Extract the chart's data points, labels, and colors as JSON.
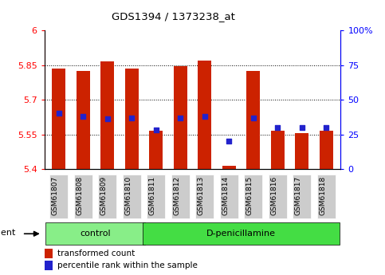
{
  "title": "GDS1394 / 1373238_at",
  "samples": [
    "GSM61807",
    "GSM61808",
    "GSM61809",
    "GSM61810",
    "GSM61811",
    "GSM61812",
    "GSM61813",
    "GSM61814",
    "GSM61815",
    "GSM61816",
    "GSM61817",
    "GSM61818"
  ],
  "transformed_counts": [
    5.835,
    5.825,
    5.865,
    5.835,
    5.565,
    5.845,
    5.868,
    5.415,
    5.825,
    5.565,
    5.555,
    5.565
  ],
  "percentile_ranks": [
    40,
    38,
    36,
    37,
    28,
    37,
    38,
    20,
    37,
    30,
    30,
    30
  ],
  "ylim_left": [
    5.4,
    6.0
  ],
  "ylim_right": [
    0,
    100
  ],
  "yticks_left": [
    5.4,
    5.55,
    5.7,
    5.85,
    6.0
  ],
  "yticks_right": [
    0,
    25,
    50,
    75,
    100
  ],
  "ytick_labels_right": [
    "0",
    "25",
    "50",
    "75",
    "100%"
  ],
  "ytick_labels_left": [
    "5.4",
    "5.55",
    "5.7",
    "5.85",
    "6"
  ],
  "bar_color": "#cc2200",
  "dot_color": "#2222cc",
  "bar_bottom": 5.4,
  "control_indices": [
    0,
    1,
    2,
    3
  ],
  "treatment_indices": [
    4,
    5,
    6,
    7,
    8,
    9,
    10,
    11
  ],
  "control_label": "control",
  "treatment_label": "D-penicillamine",
  "agent_label": "agent",
  "legend_bar_label": "transformed count",
  "legend_dot_label": "percentile rank within the sample",
  "control_color": "#88ee88",
  "treatment_color": "#44dd44",
  "tick_bg_color": "#cccccc",
  "grid_yticks": [
    5.55,
    5.7,
    5.85
  ],
  "bg_color": "#ffffff"
}
